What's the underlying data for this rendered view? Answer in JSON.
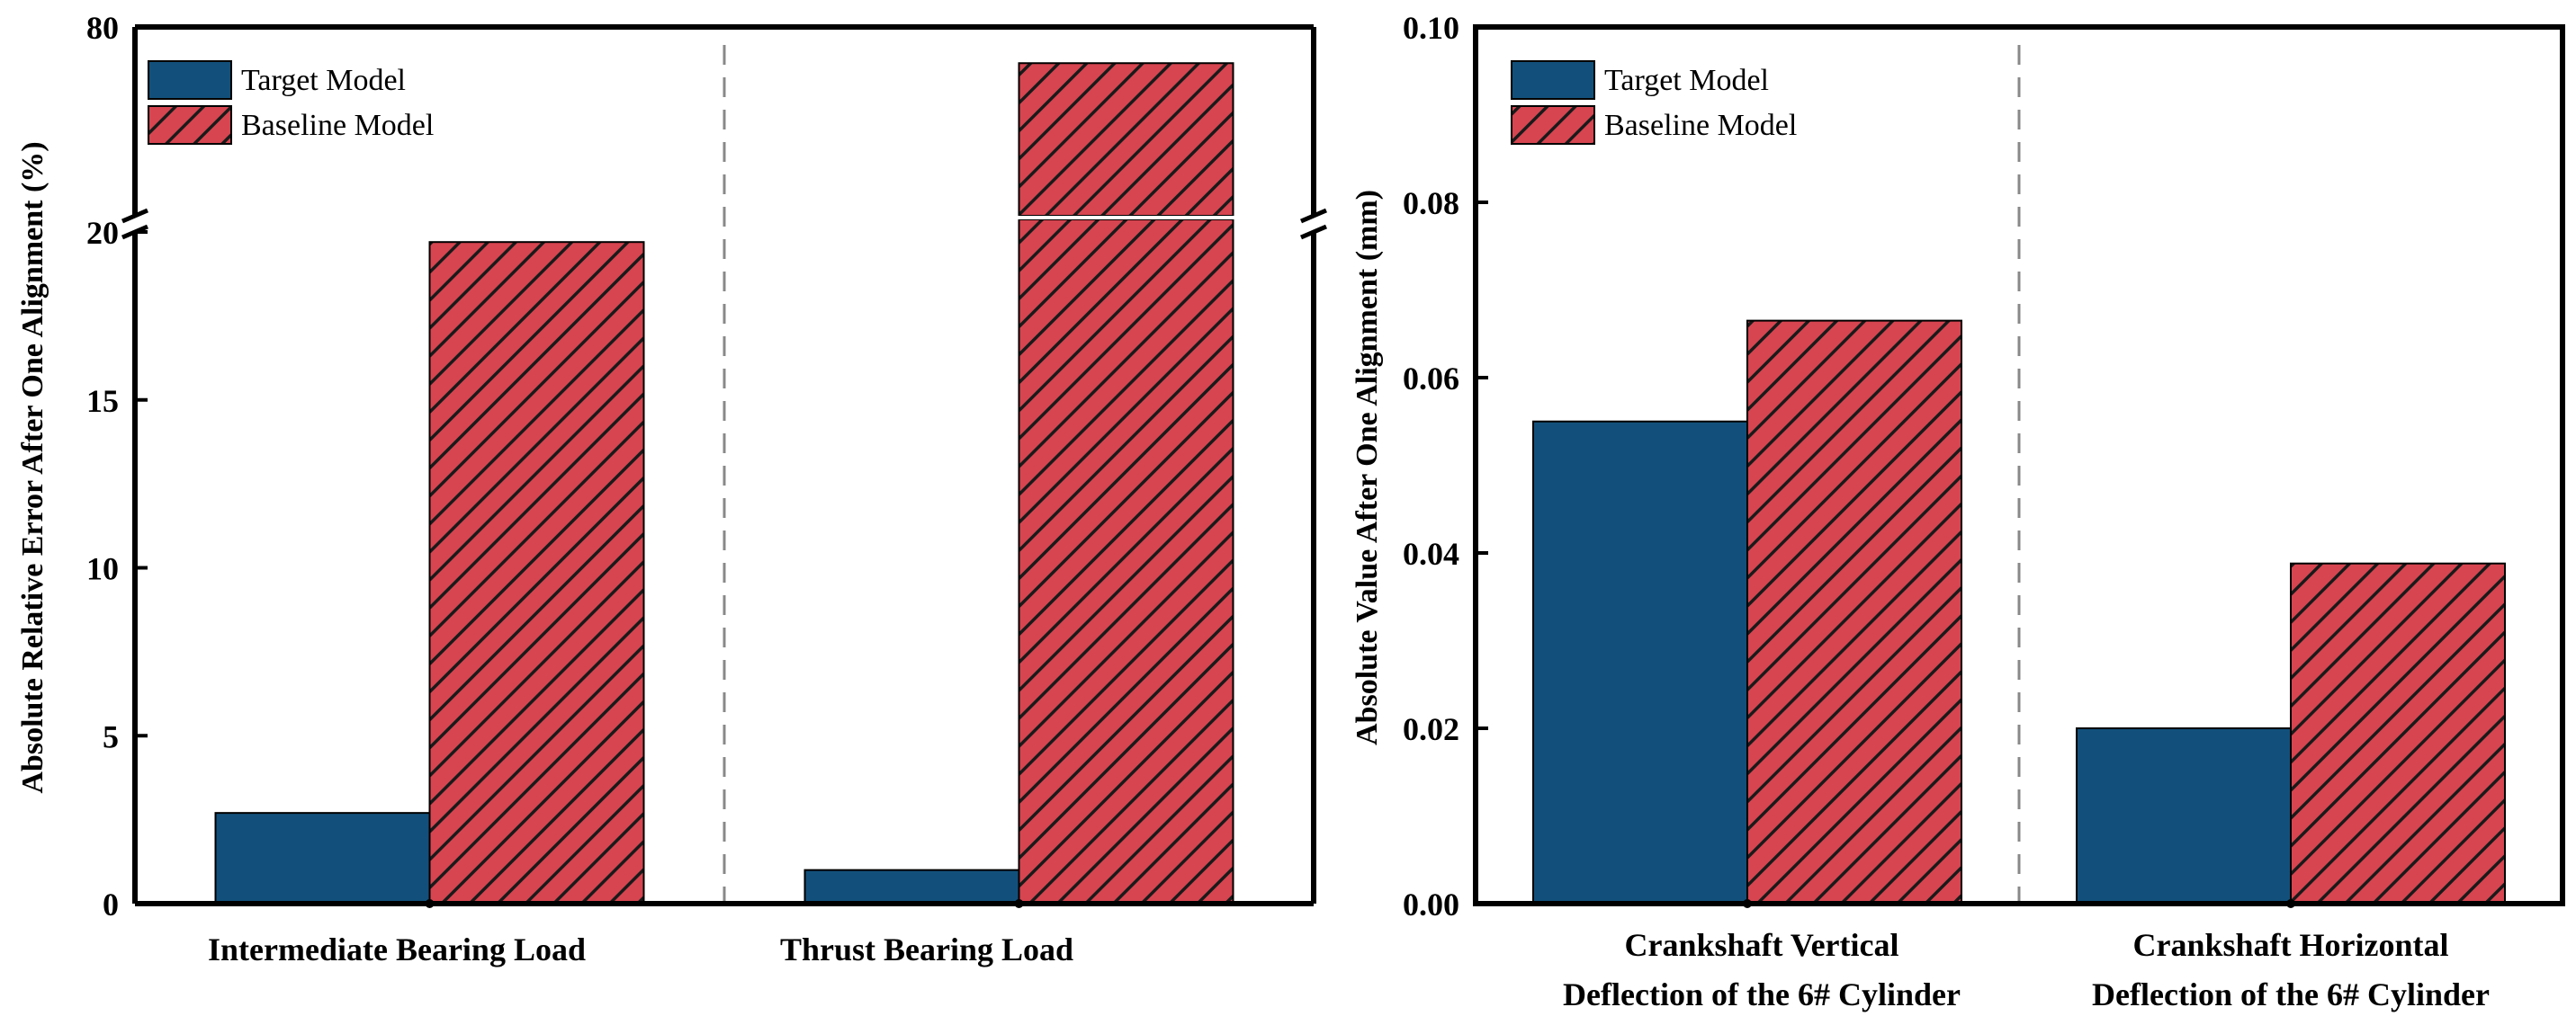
{
  "colors": {
    "target": "#12507b",
    "baseline": "#d64550",
    "hatch": "#1a1a1a",
    "divider": "#888888"
  },
  "legend": {
    "target": "Target Model",
    "baseline": "Baseline Model"
  },
  "chart_data": [
    {
      "type": "bar",
      "ylabel": "Absolute Relative Error After One Alignment (%)",
      "categories": [
        [
          "Intermediate Bearing Load"
        ],
        [
          "Thrust Bearing Load"
        ]
      ],
      "series": [
        {
          "name": "Target Model",
          "values": [
            2.7,
            1.0
          ]
        },
        {
          "name": "Baseline Model",
          "values": [
            19.7,
            68.5
          ]
        }
      ],
      "axis_break": true,
      "ylim_lower": [
        0,
        20
      ],
      "ylim_upper": [
        20,
        80
      ],
      "yticks_lower": [
        "0",
        "5",
        "10",
        "15",
        "20"
      ],
      "ytick_upper": "80"
    },
    {
      "type": "bar",
      "ylabel": "Absolute Value After One Alignment (mm)",
      "categories": [
        [
          "Crankshaft Vertical",
          "Deflection of the 6# Cylinder"
        ],
        [
          "Crankshaft Horizontal",
          "Deflection of the 6# Cylinder"
        ]
      ],
      "series": [
        {
          "name": "Target Model",
          "values": [
            0.055,
            0.02
          ]
        },
        {
          "name": "Baseline Model",
          "values": [
            0.0665,
            0.0388
          ]
        }
      ],
      "ylim": [
        0,
        0.1
      ],
      "yticks": [
        "0.00",
        "0.02",
        "0.04",
        "0.06",
        "0.08",
        "0.10"
      ]
    }
  ]
}
